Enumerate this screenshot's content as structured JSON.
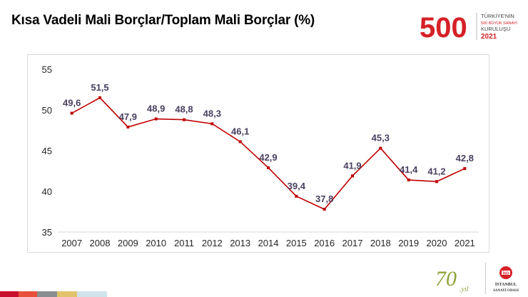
{
  "title": "Kısa Vadeli Mali Borçlar/Toplam Mali Borçlar (%)",
  "logo_500": {
    "big_number": "500",
    "lines": [
      "TÜRKİYE'NİN",
      "500 BÜYÜK SANAYİ",
      "KURULUŞU",
      "2021"
    ],
    "color": "#d62027"
  },
  "logo_70": {
    "number": "70",
    "suffix": ".yıl",
    "color": "#8aa33a"
  },
  "logo_iso": {
    "lines": [
      "İSTANBUL",
      "SANAYİ ODASI"
    ],
    "badge": "İSO",
    "color": "#d62027"
  },
  "footer_strip_colors": [
    "#c8102e",
    "#e8503a",
    "#8a8d8f",
    "#e2c36b",
    "#cfe3ea"
  ],
  "chart_data": {
    "type": "line",
    "title": "",
    "xlabel": "",
    "ylabel": "",
    "categories": [
      "2007",
      "2008",
      "2009",
      "2010",
      "2011",
      "2012",
      "2013",
      "2014",
      "2015",
      "2016",
      "2017",
      "2018",
      "2019",
      "2020",
      "2021"
    ],
    "value_labels": [
      "49,6",
      "51,5",
      "47,9",
      "48,9",
      "48,8",
      "48,3",
      "46,1",
      "42,9",
      "39,4",
      "37,8",
      "41,9",
      "45,3",
      "41,4",
      "41,2",
      "42,8"
    ],
    "series": [
      {
        "values": [
          49.6,
          51.5,
          47.9,
          48.9,
          48.8,
          48.3,
          46.1,
          42.9,
          39.4,
          37.8,
          41.9,
          45.3,
          41.4,
          41.2,
          42.8
        ],
        "color": "#c00000"
      }
    ],
    "ylim": [
      35,
      55
    ],
    "yticks": [
      35,
      40,
      45,
      50,
      55
    ],
    "grid": false,
    "legend": "none",
    "label_color": "#4a4060"
  }
}
